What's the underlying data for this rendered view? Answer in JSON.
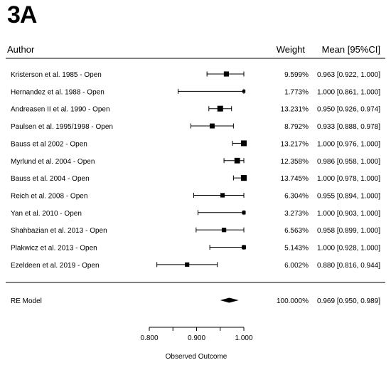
{
  "panel_label": "3A",
  "header": {
    "author": "Author",
    "weight": "Weight",
    "mean": "Mean [95%CI]"
  },
  "chart_data": {
    "type": "forest",
    "studies": [
      {
        "author": "Kristerson et al. 1985 - Open",
        "weight": "9.599%",
        "ci_text": "0.963 [0.922, 1.000]",
        "mean": 0.963,
        "lo": 0.922,
        "hi": 1.0,
        "w": 9.599
      },
      {
        "author": "Hernandez et al. 1988 - Open",
        "weight": "1.773%",
        "ci_text": "1.000 [0.861, 1.000]",
        "mean": 1.0,
        "lo": 0.861,
        "hi": 1.0,
        "w": 1.773
      },
      {
        "author": "Andreasen II et al. 1990 - Open",
        "weight": "13.231%",
        "ci_text": "0.950 [0.926, 0.974]",
        "mean": 0.95,
        "lo": 0.926,
        "hi": 0.974,
        "w": 13.231
      },
      {
        "author": "Paulsen et al. 1995/1998 - Open",
        "weight": "8.792%",
        "ci_text": "0.933 [0.888, 0.978]",
        "mean": 0.933,
        "lo": 0.888,
        "hi": 0.978,
        "w": 8.792
      },
      {
        "author": "Bauss et al 2002 - Open",
        "weight": "13.217%",
        "ci_text": "1.000 [0.976, 1.000]",
        "mean": 1.0,
        "lo": 0.976,
        "hi": 1.0,
        "w": 13.217
      },
      {
        "author": "Myrlund et al. 2004 - Open",
        "weight": "12.358%",
        "ci_text": "0.986 [0.958, 1.000]",
        "mean": 0.986,
        "lo": 0.958,
        "hi": 1.0,
        "w": 12.358
      },
      {
        "author": "Bauss et al. 2004 - Open",
        "weight": "13.745%",
        "ci_text": "1.000 [0.978, 1.000]",
        "mean": 1.0,
        "lo": 0.978,
        "hi": 1.0,
        "w": 13.745
      },
      {
        "author": "Reich et al. 2008 - Open",
        "weight": "6.304%",
        "ci_text": "0.955 [0.894, 1.000]",
        "mean": 0.955,
        "lo": 0.894,
        "hi": 1.0,
        "w": 6.304
      },
      {
        "author": "Yan et al. 2010 - Open",
        "weight": "3.273%",
        "ci_text": "1.000 [0.903, 1.000]",
        "mean": 1.0,
        "lo": 0.903,
        "hi": 1.0,
        "w": 3.273
      },
      {
        "author": "Shahbazian et al. 2013 - Open",
        "weight": "6.563%",
        "ci_text": "0.958 [0.899, 1.000]",
        "mean": 0.958,
        "lo": 0.899,
        "hi": 1.0,
        "w": 6.563
      },
      {
        "author": "Plakwicz et al. 2013 - Open",
        "weight": "5.143%",
        "ci_text": "1.000 [0.928, 1.000]",
        "mean": 1.0,
        "lo": 0.928,
        "hi": 1.0,
        "w": 5.143
      },
      {
        "author": "Ezeldeen et al. 2019 - Open",
        "weight": "6.002%",
        "ci_text": "0.880 [0.816, 0.944]",
        "mean": 0.88,
        "lo": 0.816,
        "hi": 0.944,
        "w": 6.002
      }
    ],
    "summary": {
      "author": "RE Model",
      "weight": "100.000%",
      "ci_text": "0.969 [0.950, 0.989]",
      "mean": 0.969,
      "lo": 0.95,
      "hi": 0.989
    },
    "x_ticks": [
      0.8,
      0.9,
      1.0
    ],
    "x_tick_labels": [
      "0.800",
      "0.900",
      "1.000"
    ],
    "xlabel": "Observed Outcome"
  }
}
